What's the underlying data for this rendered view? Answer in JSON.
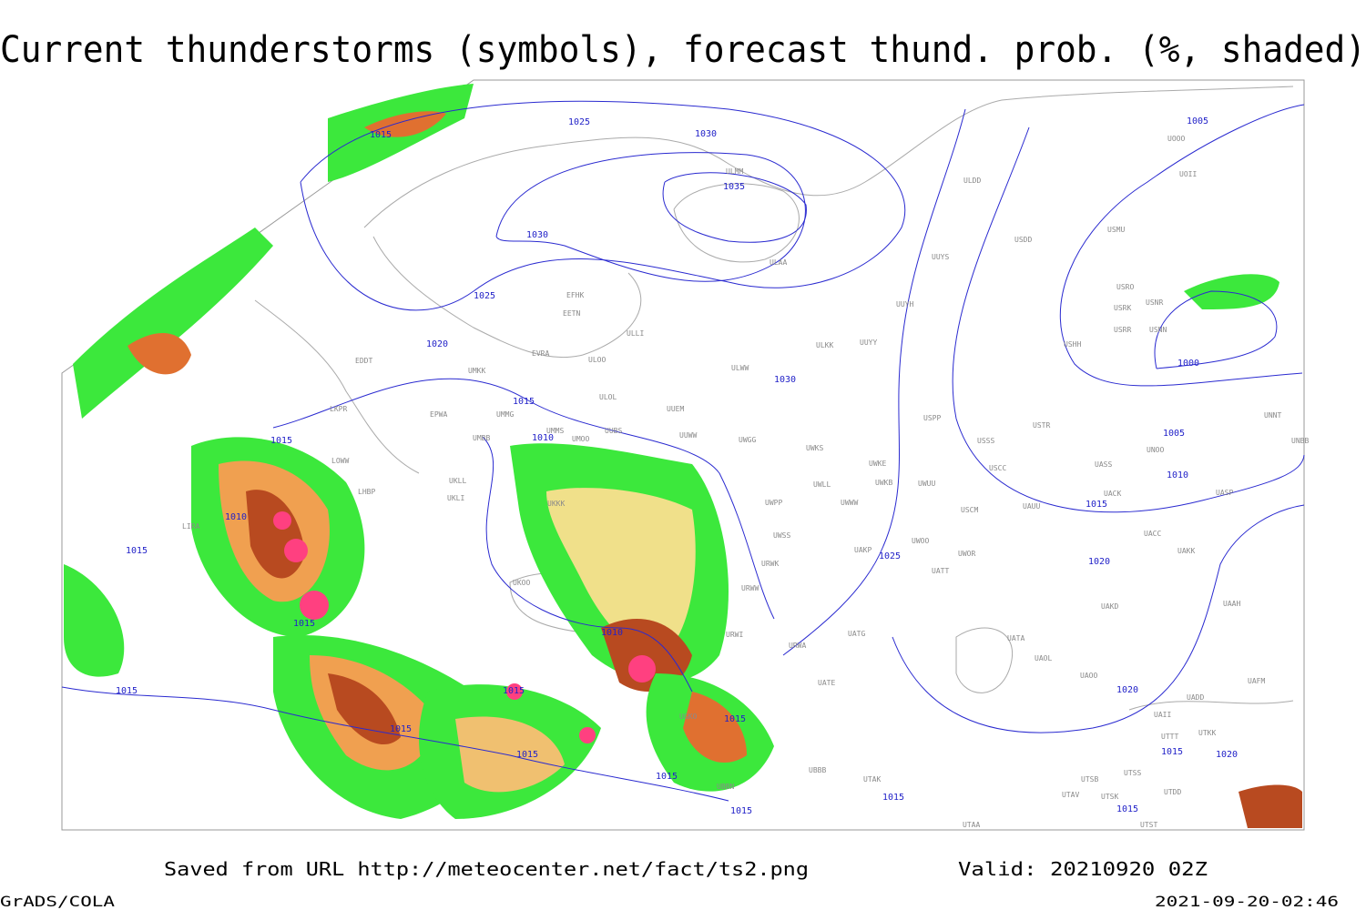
{
  "header": {
    "title": "Current thunderstorms (symbols), forecast thund. prob. (%, shaded)"
  },
  "footer": {
    "source": "Saved from URL http://meteocenter.net/fact/ts2.png",
    "valid": "Valid: 20210920 02Z",
    "software": "GrADS/COLA",
    "timestamp": "2021-09-20-02:46"
  },
  "map": {
    "isobar_labels": [
      "1015",
      "1025",
      "1030",
      "1035",
      "1005",
      "1030",
      "1025",
      "1020",
      "1030",
      "1015",
      "1010",
      "1000",
      "1005",
      "1010",
      "1015",
      "1010",
      "1015",
      "1015",
      "1025",
      "1020",
      "1015",
      "1010",
      "1015",
      "1015",
      "1015",
      "1015",
      "1015",
      "1015",
      "1020",
      "1020",
      "1015",
      "1015",
      "1015",
      "1015"
    ],
    "stations": [
      "UOOO",
      "UOII",
      "ULDD",
      "ULMM",
      "USMU",
      "USDD",
      "UUYS",
      "ULAA",
      "USRO",
      "USRK",
      "USNR",
      "EFHK",
      "EETN",
      "USRR",
      "USNN",
      "UUYH",
      "ULLI",
      "USHH",
      "ULKK",
      "UUYY",
      "EVRA",
      "ULOO",
      "EDDT",
      "UMKK",
      "ULWW",
      "ULOL",
      "UUEM",
      "LKPR",
      "EPWA",
      "UMMG",
      "UMMS",
      "UMOO",
      "UUBS",
      "USPP",
      "UNNT",
      "UNBB",
      "UUWW",
      "UMBB",
      "UWGG",
      "UWKS",
      "USSS",
      "USTR",
      "UNOO",
      "UASS",
      "USCC",
      "UWKE",
      "LOWW",
      "UKLL",
      "UWKB",
      "UWUU",
      "UACK",
      "UASP",
      "UKLI",
      "LHBP",
      "UWLL",
      "UWWW",
      "UWPP",
      "UAUU",
      "USCM",
      "LIRA",
      "UKKK",
      "UWSS",
      "UACC",
      "UAKK",
      "UWOO",
      "UWOR",
      "UAKP",
      "UATT",
      "URWK",
      "UKOO",
      "URWW",
      "UAAH",
      "UAKD",
      "URWI",
      "UATG",
      "URWA",
      "UATA",
      "UAOL",
      "UAOO",
      "UGKO",
      "UATE",
      "UAFM",
      "UADD",
      "UAII",
      "UTTT",
      "UTKK",
      "UBBB",
      "UTAK",
      "UTSB",
      "UTSS",
      "UTAV",
      "UTSK",
      "UTDD",
      "UTAA",
      "UTST",
      "UBBN"
    ]
  }
}
